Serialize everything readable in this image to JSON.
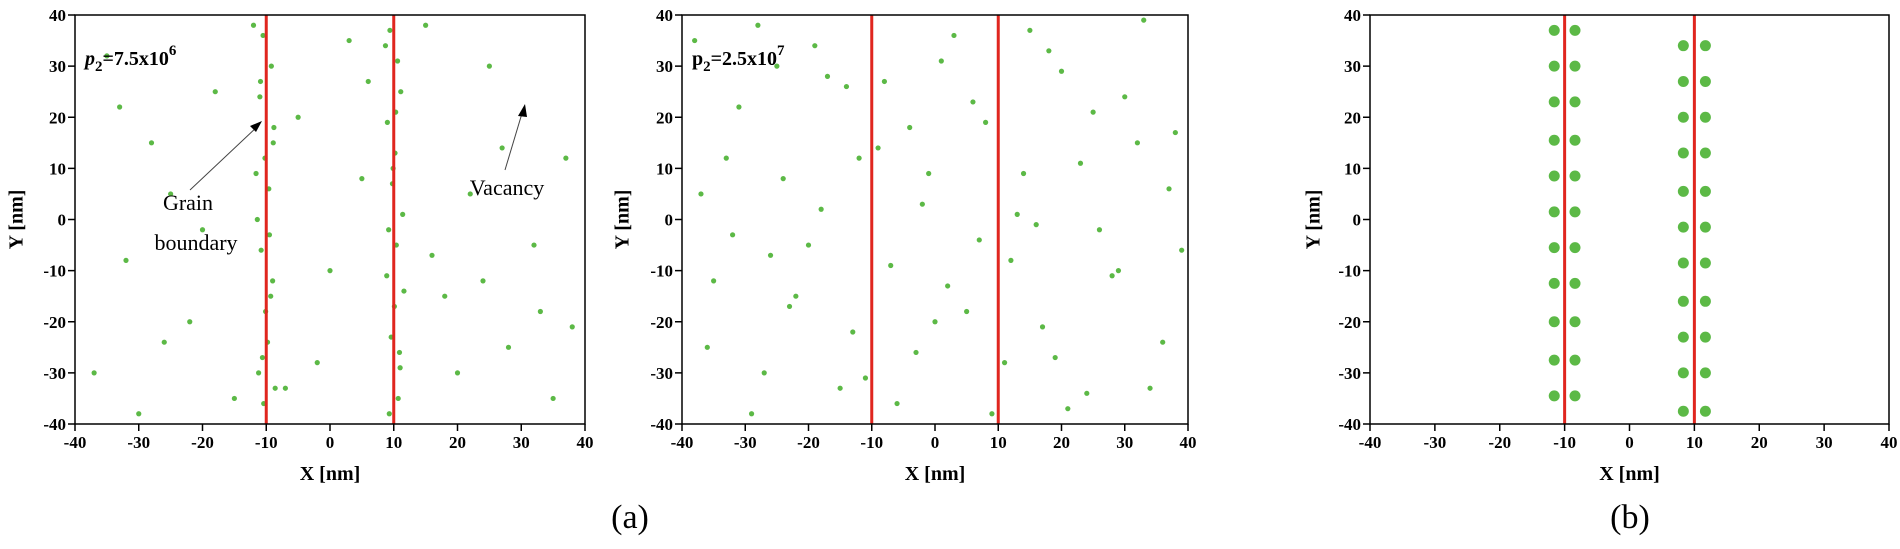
{
  "chart_data": [
    {
      "type": "scatter",
      "xlabel": "X [nm]",
      "ylabel": "Y [nm]",
      "xlim": [
        -40,
        40
      ],
      "ylim": [
        -40,
        40
      ],
      "xticks": [
        -40,
        -30,
        -20,
        -10,
        0,
        10,
        20,
        30,
        40
      ],
      "yticks": [
        -40,
        -30,
        -20,
        -10,
        0,
        10,
        20,
        30,
        40
      ],
      "annotation": {
        "base": "p",
        "sub": "2",
        "main": "=7.5x10",
        "sup": "6"
      },
      "notes": [
        "Grain",
        "boundary",
        "Vacancy"
      ],
      "boundaries": [
        -10,
        10
      ],
      "boundary_color": "#e0261f",
      "series": [
        {
          "color": "#5cb946",
          "marker_size": 2.6,
          "x": [
            -10.5,
            -9.2,
            -11,
            -8.8,
            -10.2,
            -9.6,
            -11.4,
            -10.8,
            -9.0,
            -10.1,
            -9.8,
            -11.2,
            -10.4,
            -8.9,
            -9.5,
            -10.9,
            -9.3,
            -10.6,
            -11.6,
            -8.6,
            9.4,
            10.6,
            11.1,
            9.0,
            10.2,
            9.8,
            11.4,
            10.4,
            8.9,
            10.1,
            9.6,
            11.0,
            10.7,
            9.2,
            10.3,
            8.7,
            11.6,
            9.9,
            10.9,
            9.3,
            -35,
            -28,
            -22,
            -32,
            -18,
            -25,
            -37,
            -15,
            -5,
            0,
            3,
            -2,
            5,
            18,
            25,
            32,
            28,
            37,
            22,
            35,
            15,
            -30,
            20,
            -12,
            -33,
            -20,
            27,
            33,
            -7,
            6,
            16,
            -26,
            38,
            24
          ],
          "y": [
            36,
            30,
            24,
            18,
            12,
            6,
            0,
            -6,
            -12,
            -18,
            -24,
            -30,
            -36,
            15,
            -3,
            27,
            -15,
            -27,
            9,
            -33,
            37,
            31,
            25,
            19,
            13,
            7,
            1,
            -5,
            -11,
            -17,
            -23,
            -29,
            -35,
            -2,
            21,
            34,
            -14,
            10,
            -26,
            -38,
            32,
            15,
            -20,
            -8,
            25,
            5,
            -30,
            -35,
            20,
            -10,
            35,
            -28,
            8,
            -15,
            30,
            -5,
            -25,
            12,
            5,
            -35,
            38,
            -38,
            -30,
            38,
            22,
            -2,
            14,
            -18,
            -33,
            27,
            -7,
            -24,
            -21,
            -12
          ]
        }
      ]
    },
    {
      "type": "scatter",
      "xlabel": "X [nm]",
      "ylabel": "Y [nm]",
      "xlim": [
        -40,
        40
      ],
      "ylim": [
        -40,
        40
      ],
      "xticks": [
        -40,
        -30,
        -20,
        -10,
        0,
        10,
        20,
        30,
        40
      ],
      "yticks": [
        -40,
        -30,
        -20,
        -10,
        0,
        10,
        20,
        30,
        40
      ],
      "annotation": {
        "base": "p",
        "sub": "2",
        "main": "=2.5x10",
        "sup": "7"
      },
      "boundaries": [
        -10,
        10
      ],
      "boundary_color": "#e0261f",
      "series": [
        {
          "color": "#5cb946",
          "marker_size": 2.6,
          "x": [
            -38,
            -35,
            -31,
            -27,
            -24,
            -20,
            -17,
            -13,
            -9,
            -6,
            -2,
            1,
            5,
            8,
            12,
            15,
            19,
            23,
            26,
            30,
            34,
            37,
            -36,
            -33,
            -29,
            -25,
            -22,
            -18,
            -14,
            -11,
            -7,
            -4,
            0,
            3,
            7,
            11,
            14,
            18,
            21,
            25,
            28,
            32,
            36,
            39,
            -37,
            -32,
            -28,
            -23,
            -19,
            -15,
            -12,
            -8,
            -3,
            2,
            6,
            9,
            13,
            17,
            20,
            24,
            29,
            33,
            38,
            -26,
            -1,
            16
          ],
          "y": [
            35,
            -12,
            22,
            -30,
            8,
            -5,
            28,
            -22,
            14,
            -36,
            3,
            31,
            -18,
            19,
            -8,
            37,
            -27,
            11,
            -2,
            24,
            -33,
            6,
            -25,
            12,
            -38,
            30,
            -15,
            2,
            26,
            -31,
            -9,
            18,
            -20,
            36,
            -4,
            -28,
            9,
            33,
            -37,
            21,
            -11,
            15,
            -24,
            -6,
            5,
            -3,
            38,
            -17,
            34,
            -33,
            12,
            27,
            -26,
            -13,
            23,
            -38,
            1,
            -21,
            29,
            -34,
            -10,
            39,
            17,
            -7,
            9,
            -1
          ]
        }
      ]
    },
    {
      "type": "scatter",
      "xlabel": "X [nm]",
      "ylabel": "Y [nm]",
      "xlim": [
        -40,
        40
      ],
      "ylim": [
        -40,
        40
      ],
      "xticks": [
        -40,
        -30,
        -20,
        -10,
        0,
        10,
        20,
        30,
        40
      ],
      "yticks": [
        -40,
        -30,
        -20,
        -10,
        0,
        10,
        20,
        30,
        40
      ],
      "boundaries": [
        -10,
        10
      ],
      "boundary_color": "#e0261f",
      "series": [
        {
          "color": "#5cb946",
          "marker_size": 5.5,
          "x": [
            -11.6,
            -11.6,
            -11.6,
            -11.6,
            -11.6,
            -11.6,
            -11.6,
            -11.6,
            -11.6,
            -11.6,
            -11.6,
            -8.4,
            -8.4,
            -8.4,
            -8.4,
            -8.4,
            -8.4,
            -8.4,
            -8.4,
            -8.4,
            -8.4,
            -8.4,
            8.3,
            8.3,
            8.3,
            8.3,
            8.3,
            8.3,
            8.3,
            8.3,
            8.3,
            8.3,
            8.3,
            11.7,
            11.7,
            11.7,
            11.7,
            11.7,
            11.7,
            11.7,
            11.7,
            11.7,
            11.7,
            11.7
          ],
          "y": [
            37,
            30,
            23,
            15.5,
            8.5,
            1.5,
            -5.5,
            -12.5,
            -20,
            -27.5,
            -34.5,
            37,
            30,
            23,
            15.5,
            8.5,
            1.5,
            -5.5,
            -12.5,
            -20,
            -27.5,
            -34.5,
            34,
            27,
            20,
            13,
            5.5,
            -1.5,
            -8.5,
            -16,
            -23,
            -30,
            -37.5,
            34,
            27,
            20,
            13,
            5.5,
            -1.5,
            -8.5,
            -16,
            -23,
            -30,
            -37.5
          ]
        }
      ]
    }
  ],
  "figure_labels": [
    "(a)",
    "(b)"
  ]
}
